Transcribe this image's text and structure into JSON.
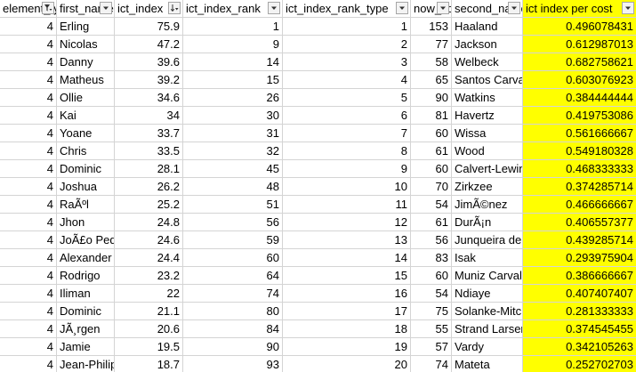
{
  "columns": [
    {
      "label": "element_type",
      "filter": "funnel"
    },
    {
      "label": "first_name",
      "filter": "dropdown"
    },
    {
      "label": "ict_index",
      "filter": "sorted-desc"
    },
    {
      "label": "ict_index_rank",
      "filter": "dropdown"
    },
    {
      "label": "ict_index_rank_type",
      "filter": "dropdown"
    },
    {
      "label": "now_cost",
      "filter": "dropdown"
    },
    {
      "label": "second_name",
      "filter": "dropdown"
    },
    {
      "label": "ict index per cost",
      "filter": "dropdown"
    }
  ],
  "highlight_color": "#ffff00",
  "rows": [
    [
      "4",
      "Erling",
      "75.9",
      "1",
      "1",
      "153",
      "Haaland",
      "0.496078431"
    ],
    [
      "4",
      "Nicolas",
      "47.2",
      "9",
      "2",
      "77",
      "Jackson",
      "0.612987013"
    ],
    [
      "4",
      "Danny",
      "39.6",
      "14",
      "3",
      "58",
      "Welbeck",
      "0.682758621"
    ],
    [
      "4",
      "Matheus",
      "39.2",
      "15",
      "4",
      "65",
      "Santos Carvalho",
      "0.603076923"
    ],
    [
      "4",
      "Ollie",
      "34.6",
      "26",
      "5",
      "90",
      "Watkins",
      "0.384444444"
    ],
    [
      "4",
      "Kai",
      "34",
      "30",
      "6",
      "81",
      "Havertz",
      "0.419753086"
    ],
    [
      "4",
      "Yoane",
      "33.7",
      "31",
      "7",
      "60",
      "Wissa",
      "0.561666667"
    ],
    [
      "4",
      "Chris",
      "33.5",
      "32",
      "8",
      "61",
      "Wood",
      "0.549180328"
    ],
    [
      "4",
      "Dominic",
      "28.1",
      "45",
      "9",
      "60",
      "Calvert-Lewin",
      "0.468333333"
    ],
    [
      "4",
      "Joshua",
      "26.2",
      "48",
      "10",
      "70",
      "Zirkzee",
      "0.374285714"
    ],
    [
      "4",
      "RaÃºl",
      "25.2",
      "51",
      "11",
      "54",
      "JimÃ©nez",
      "0.466666667"
    ],
    [
      "4",
      "Jhon",
      "24.8",
      "56",
      "12",
      "61",
      "DurÃ¡n",
      "0.406557377"
    ],
    [
      "4",
      "JoÃ£o Pedro",
      "24.6",
      "59",
      "13",
      "56",
      "Junqueira de Jesus",
      "0.439285714"
    ],
    [
      "4",
      "Alexander",
      "24.4",
      "60",
      "14",
      "83",
      "Isak",
      "0.293975904"
    ],
    [
      "4",
      "Rodrigo",
      "23.2",
      "64",
      "15",
      "60",
      "Muniz Carvalho",
      "0.386666667"
    ],
    [
      "4",
      "Iliman",
      "22",
      "74",
      "16",
      "54",
      "Ndiaye",
      "0.407407407"
    ],
    [
      "4",
      "Dominic",
      "21.1",
      "80",
      "17",
      "75",
      "Solanke-Mitchell",
      "0.281333333"
    ],
    [
      "4",
      "JÃ¸rgen",
      "20.6",
      "84",
      "18",
      "55",
      "Strand Larsen",
      "0.374545455"
    ],
    [
      "4",
      "Jamie",
      "19.5",
      "90",
      "19",
      "57",
      "Vardy",
      "0.342105263"
    ],
    [
      "4",
      "Jean-Philippe",
      "18.7",
      "93",
      "20",
      "74",
      "Mateta",
      "0.252702703"
    ]
  ]
}
